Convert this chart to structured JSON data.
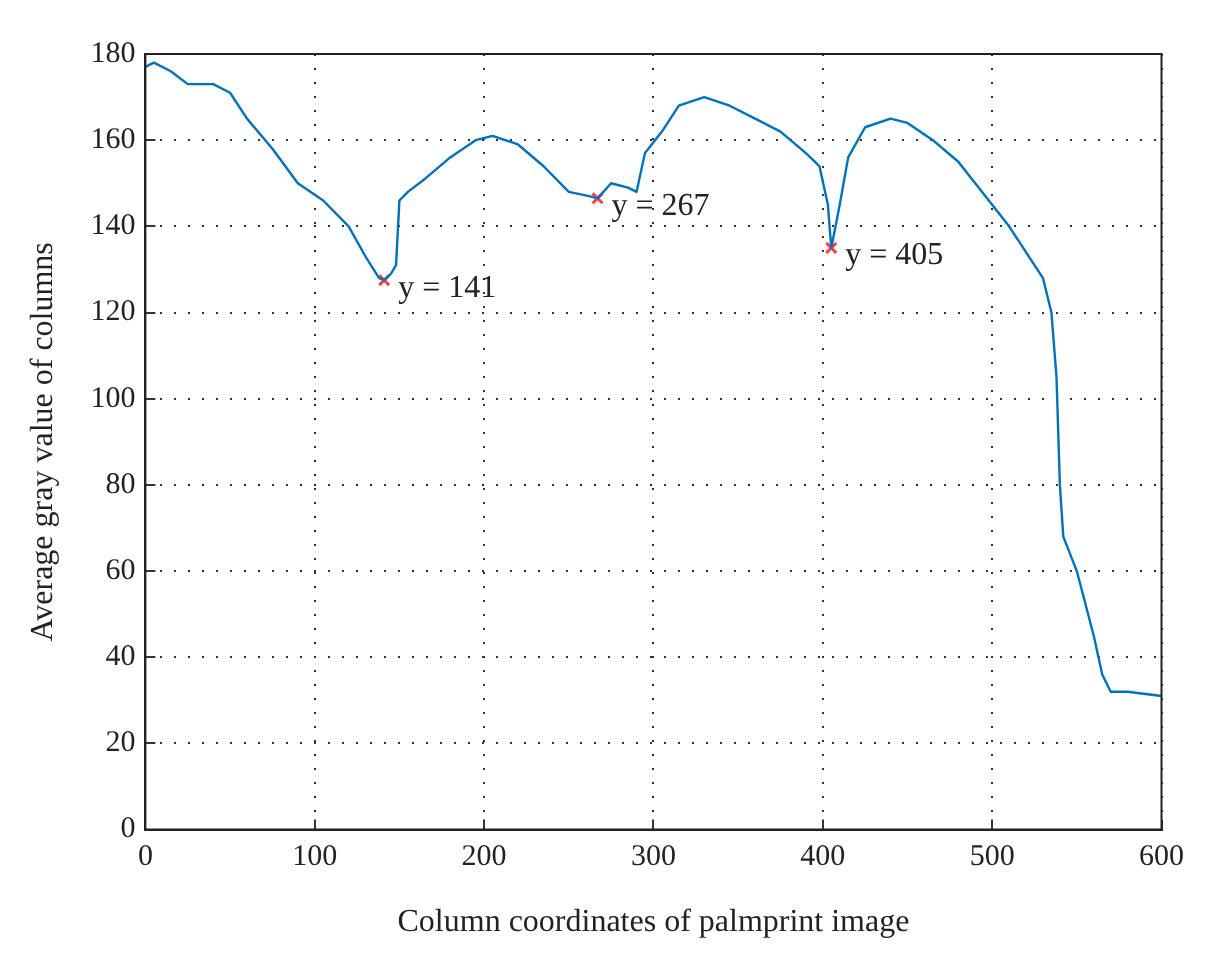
{
  "chart_data": {
    "type": "line",
    "xlabel": "Column coordinates of palmprint image",
    "ylabel": "Average gray value of columns",
    "xlim": [
      0,
      600
    ],
    "xticks": [
      0,
      100,
      200,
      300,
      400,
      500,
      600
    ],
    "ylim": [
      0,
      180
    ],
    "yticks": [
      0,
      20,
      40,
      60,
      80,
      100,
      120,
      140,
      160,
      180
    ],
    "grid": true,
    "legend": false,
    "series": [
      {
        "color": "#0072bd",
        "x": [
          0,
          5,
          15,
          25,
          40,
          50,
          60,
          75,
          90,
          105,
          120,
          130,
          138,
          141,
          145,
          148,
          150,
          155,
          165,
          180,
          195,
          205,
          220,
          235,
          250,
          262,
          267,
          275,
          285,
          290,
          295,
          305,
          315,
          330,
          345,
          360,
          375,
          390,
          398,
          403,
          405,
          410,
          415,
          425,
          440,
          450,
          465,
          480,
          490,
          500,
          510,
          520,
          530,
          535,
          538,
          540,
          542,
          550,
          560,
          565,
          570,
          580,
          600
        ],
        "values": [
          177,
          178,
          176,
          173,
          173,
          171,
          165,
          158,
          150,
          146,
          140,
          133,
          128,
          127.5,
          129,
          131,
          146,
          148,
          151,
          156,
          160,
          161,
          159,
          154,
          148,
          147,
          146.5,
          150,
          149,
          148,
          157,
          162,
          168,
          170,
          168,
          165,
          162,
          157,
          154,
          145,
          135,
          145,
          156,
          163,
          165,
          164,
          160,
          155,
          150,
          145,
          140,
          134,
          128,
          120,
          105,
          80,
          68,
          60,
          45,
          36,
          32,
          32,
          31
        ]
      },
      {
        "type": "scatter",
        "color": "#ff4040",
        "marker": "cross",
        "x": [
          141,
          267,
          405
        ],
        "values": [
          127.5,
          146.5,
          135
        ]
      }
    ],
    "annotations": [
      {
        "text": "y = 141",
        "x": 141,
        "y": 127.5
      },
      {
        "text": "y = 267",
        "x": 267,
        "y": 146.5
      },
      {
        "text": "y = 405",
        "x": 405,
        "y": 135
      }
    ]
  }
}
